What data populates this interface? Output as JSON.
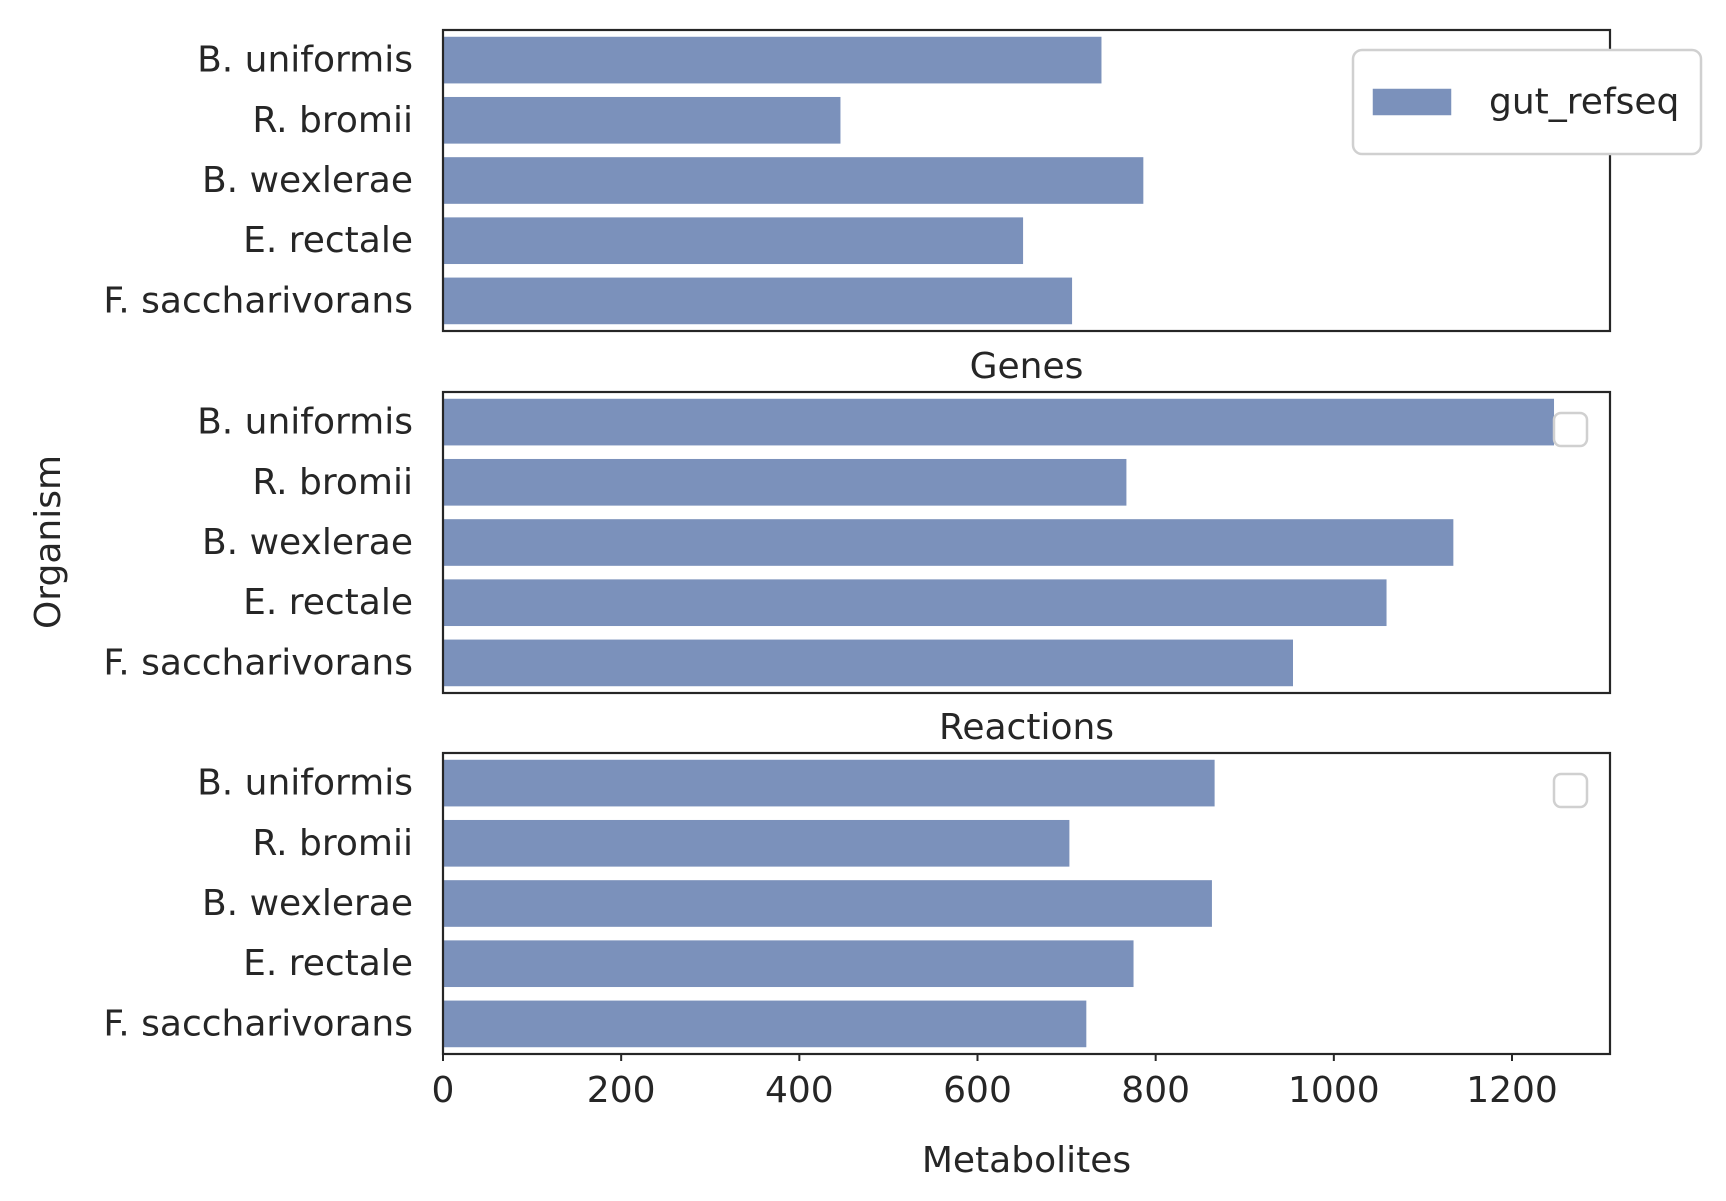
{
  "chart_data": {
    "type": "bar",
    "orientation": "horizontal",
    "categories": [
      "B. uniformis",
      "R. bromii",
      "B. wexlerae",
      "E. rectale",
      "F. saccharivorans"
    ],
    "ylabel": "Organism",
    "xlabel": "Metabolites",
    "xlim": [
      0,
      1310
    ],
    "xticks": [
      0,
      200,
      400,
      600,
      800,
      1000,
      1200
    ],
    "grid": false,
    "bar_color": "#7b91bb",
    "panels": [
      {
        "title": "",
        "series": [
          {
            "name": "gut_refseq",
            "values": [
              740,
              447,
              787,
              652,
              707
            ]
          }
        ],
        "legend": {
          "position": "top-right",
          "entries": [
            "gut_refseq"
          ]
        }
      },
      {
        "title": "Genes",
        "series": [
          {
            "values": [
              1248,
              768,
              1135,
              1060,
              955
            ]
          }
        ],
        "legend": {
          "position": "top-right",
          "entries": []
        }
      },
      {
        "title": "Reactions",
        "series": [
          {
            "values": [
              867,
              704,
              864,
              776,
              723
            ]
          }
        ],
        "legend": {
          "position": "top-right",
          "entries": []
        }
      }
    ]
  }
}
